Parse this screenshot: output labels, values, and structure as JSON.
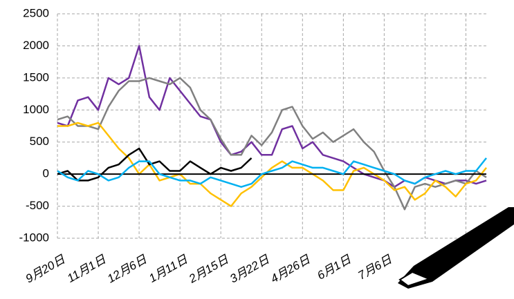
{
  "chart_data": {
    "type": "line",
    "categories": [
      "9月20日",
      null,
      null,
      null,
      "11月1日",
      null,
      null,
      null,
      "12月6日",
      null,
      null,
      null,
      "1月11日",
      null,
      null,
      null,
      "2月15日",
      null,
      null,
      null,
      "3月22日",
      null,
      null,
      null,
      "4月26日",
      null,
      null,
      null,
      "6月1日",
      null,
      null,
      null,
      "7月6日",
      null,
      null,
      null,
      null,
      null,
      null,
      null,
      null,
      null,
      null
    ],
    "series": [
      {
        "color": "#7030a0",
        "values": [
          800,
          750,
          1150,
          1200,
          1000,
          1500,
          1400,
          1500,
          2000,
          1200,
          1000,
          1500,
          1300,
          1100,
          900,
          850,
          500,
          300,
          350,
          500,
          300,
          300,
          700,
          750,
          400,
          500,
          300,
          250,
          200,
          100,
          0,
          -50,
          -100,
          -200,
          -100,
          -150,
          -50,
          -100,
          -150,
          -100,
          -100,
          -150,
          -100
        ]
      },
      {
        "color": "#808080",
        "values": [
          850,
          900,
          750,
          750,
          700,
          1050,
          1300,
          1450,
          1450,
          1500,
          1450,
          1400,
          1500,
          1350,
          1000,
          850,
          550,
          300,
          300,
          600,
          450,
          650,
          1000,
          1050,
          750,
          550,
          650,
          500,
          600,
          700,
          500,
          350,
          50,
          -200,
          -550,
          -200,
          -150,
          -200,
          -150,
          -100,
          -150,
          50,
          -50
        ]
      },
      {
        "color": "#ffc000",
        "values": [
          750,
          750,
          800,
          750,
          800,
          600,
          400,
          250,
          0,
          150,
          -100,
          -50,
          0,
          -150,
          -150,
          -300,
          -400,
          -500,
          -300,
          -200,
          -50,
          100,
          200,
          100,
          100,
          0,
          -100,
          -250,
          -250,
          50,
          100,
          0,
          -100,
          -250,
          -200,
          -400,
          -300,
          -100,
          -200,
          -350,
          -150,
          -100,
          100
        ]
      },
      {
        "color": "#000000",
        "values": [
          0,
          50,
          -100,
          -100,
          -50,
          100,
          150,
          300,
          400,
          150,
          200,
          50,
          50,
          200,
          100,
          0,
          100,
          50,
          100,
          250,
          null,
          null,
          null,
          null,
          null,
          null,
          null,
          null,
          null,
          null,
          null,
          null,
          null,
          null,
          null,
          null,
          null,
          null,
          null,
          null,
          null,
          null,
          null
        ]
      },
      {
        "color": "#00b0f0",
        "values": [
          50,
          -50,
          -100,
          50,
          0,
          -100,
          -50,
          100,
          200,
          200,
          0,
          -50,
          -100,
          -100,
          -150,
          -50,
          -100,
          -150,
          -200,
          -150,
          0,
          50,
          100,
          200,
          150,
          100,
          100,
          50,
          0,
          200,
          150,
          100,
          50,
          0,
          -100,
          -150,
          -50,
          0,
          50,
          0,
          50,
          50,
          250
        ]
      }
    ],
    "ylim": [
      -1000,
      2500
    ],
    "yticks": [
      -1000,
      -500,
      0,
      500,
      1000,
      1500,
      2000,
      2500
    ],
    "grid": true
  }
}
